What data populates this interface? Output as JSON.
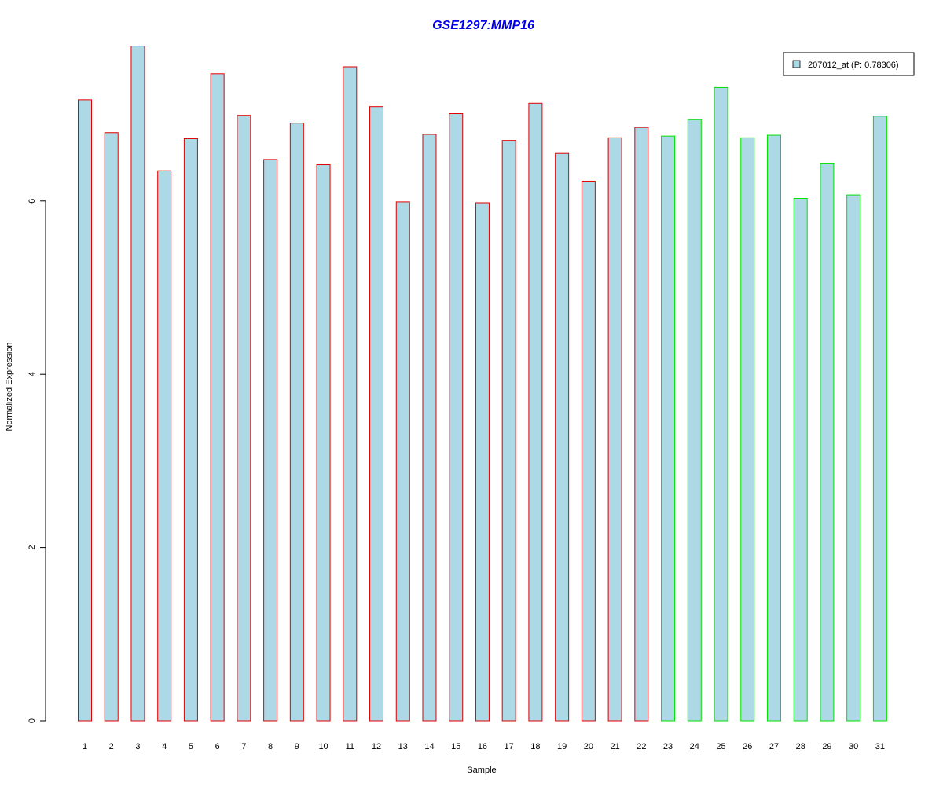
{
  "chart_data": {
    "type": "bar",
    "title": "GSE1297:MMP16",
    "xlabel": "Sample",
    "ylabel": "Normalized Expression",
    "ylim": [
      0,
      7.9
    ],
    "yticks": [
      0,
      2,
      4,
      6
    ],
    "grid": false,
    "legend": {
      "position": "top-right",
      "entries": [
        "207012_at (P: 0.78306)"
      ]
    },
    "categories": [
      "1",
      "2",
      "3",
      "4",
      "5",
      "6",
      "7",
      "8",
      "9",
      "10",
      "11",
      "12",
      "13",
      "14",
      "15",
      "16",
      "17",
      "18",
      "19",
      "20",
      "21",
      "22",
      "23",
      "24",
      "25",
      "26",
      "27",
      "28",
      "29",
      "30",
      "31"
    ],
    "series": [
      {
        "name": "207012_at (P: 0.78306)",
        "values": [
          7.17,
          6.79,
          7.79,
          6.35,
          6.72,
          7.47,
          6.99,
          6.48,
          6.9,
          6.42,
          7.55,
          7.09,
          5.99,
          6.77,
          7.01,
          5.98,
          6.7,
          7.13,
          6.55,
          6.23,
          6.73,
          6.85,
          6.75,
          6.94,
          7.31,
          6.73,
          6.76,
          6.03,
          6.43,
          6.07,
          6.98
        ],
        "groups": [
          "A",
          "A",
          "A",
          "A",
          "A",
          "A",
          "A",
          "A",
          "A",
          "A",
          "A",
          "A",
          "A",
          "A",
          "A",
          "A",
          "A",
          "A",
          "A",
          "A",
          "A",
          "A",
          "B",
          "B",
          "B",
          "B",
          "B",
          "B",
          "B",
          "B",
          "B"
        ]
      }
    ],
    "colors": {
      "fill": "#add8e6",
      "group_A_border": "#e00000",
      "group_B_border": "#00e000",
      "title": "#0000ee"
    }
  }
}
